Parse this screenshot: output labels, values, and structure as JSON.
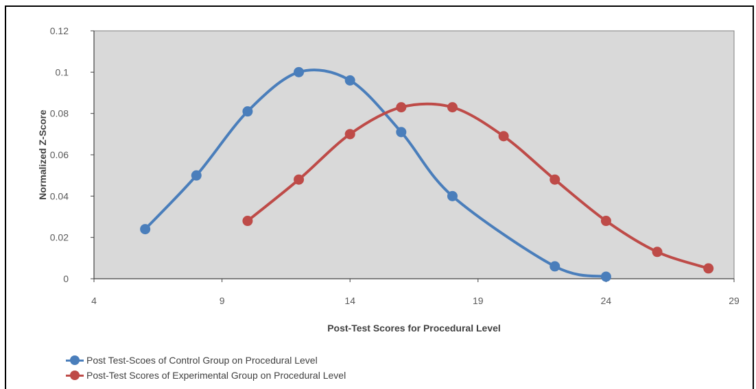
{
  "chart_data": {
    "type": "line",
    "xlabel": "Post-Test Scores for Procedural Level",
    "ylabel": "Normalized Z-Score",
    "xlim": [
      4,
      29
    ],
    "ylim": [
      0,
      0.12
    ],
    "x_ticks": [
      "4",
      "9",
      "14",
      "19",
      "24",
      "29"
    ],
    "y_ticks": [
      "0",
      "0.02",
      "0.04",
      "0.06",
      "0.08",
      "0.1",
      "0.12"
    ],
    "grid": false,
    "plot_background": "#d9d9d9",
    "legend_position": "bottom-left",
    "series": [
      {
        "name": "Post Test-Scoes of Control Group on Procedural Level",
        "color": "#4a7ebb",
        "x": [
          6,
          8,
          10,
          12,
          14,
          16,
          18,
          22,
          24
        ],
        "y": [
          0.024,
          0.05,
          0.081,
          0.1,
          0.096,
          0.071,
          0.04,
          0.006,
          0.001
        ]
      },
      {
        "name": "Post-Test Scores of Experimental Group on Procedural Level",
        "color": "#be4b48",
        "x": [
          10,
          12,
          14,
          16,
          18,
          20,
          22,
          24,
          26,
          28
        ],
        "y": [
          0.028,
          0.048,
          0.07,
          0.083,
          0.083,
          0.069,
          0.048,
          0.028,
          0.013,
          0.005
        ]
      }
    ]
  }
}
